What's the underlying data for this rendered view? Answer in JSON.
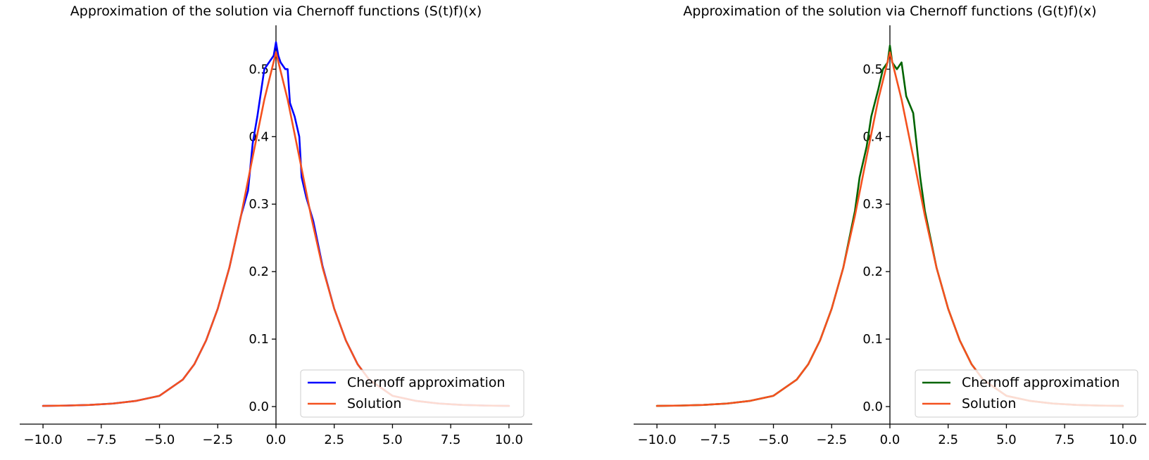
{
  "chart_data": [
    {
      "type": "line",
      "title": "Approximation of the solution via Chernoff functions (S(t)f)(x)",
      "xlim": [
        -11,
        11
      ],
      "ylim": [
        -0.026,
        0.565
      ],
      "x_ticks": [
        -10.0,
        -7.5,
        -5.0,
        -2.5,
        0.0,
        2.5,
        5.0,
        7.5,
        10.0
      ],
      "x_tick_labels": [
        "−10.0",
        "−7.5",
        "−5.0",
        "−2.5",
        "0.0",
        "2.5",
        "5.0",
        "7.5",
        "10.0"
      ],
      "y_ticks": [
        0.0,
        0.1,
        0.2,
        0.3,
        0.4,
        0.5
      ],
      "y_tick_labels": [
        "0.0",
        "0.1",
        "0.2",
        "0.3",
        "0.4",
        "0.5"
      ],
      "grid": false,
      "legend_position": "lower-right",
      "series": [
        {
          "name": "Chernoff approximation",
          "color": "#0000ff",
          "x": [
            -10,
            -9,
            -8,
            -7,
            -6,
            -5,
            -4,
            -3.5,
            -3,
            -2.5,
            -2,
            -1.5,
            -1.2,
            -1,
            -0.8,
            -0.5,
            -0.3,
            -0.1,
            0,
            0.1,
            0.2,
            0.4,
            0.5,
            0.6,
            0.8,
            1,
            1.1,
            1.3,
            1.6,
            2,
            2.5,
            3,
            3.5,
            4,
            5,
            6,
            7,
            8,
            9,
            10
          ],
          "y": [
            0.001,
            0.0015,
            0.0025,
            0.0045,
            0.0085,
            0.016,
            0.04,
            0.063,
            0.098,
            0.145,
            0.206,
            0.283,
            0.32,
            0.39,
            0.43,
            0.5,
            0.51,
            0.52,
            0.54,
            0.52,
            0.51,
            0.5,
            0.5,
            0.45,
            0.43,
            0.4,
            0.34,
            0.31,
            0.275,
            0.208,
            0.145,
            0.098,
            0.063,
            0.04,
            0.016,
            0.0085,
            0.0045,
            0.0025,
            0.0015,
            0.001
          ]
        },
        {
          "name": "Solution",
          "color": "#f4511e",
          "x": [
            -10,
            -9,
            -8,
            -7,
            -6,
            -5,
            -4,
            -3.5,
            -3,
            -2.5,
            -2,
            -1.5,
            -1,
            -0.5,
            0,
            0.5,
            1,
            1.5,
            2,
            2.5,
            3,
            3.5,
            4,
            5,
            6,
            7,
            8,
            9,
            10
          ],
          "y": [
            0.001,
            0.0015,
            0.0025,
            0.0045,
            0.0085,
            0.016,
            0.04,
            0.063,
            0.098,
            0.145,
            0.206,
            0.283,
            0.37,
            0.455,
            0.525,
            0.455,
            0.37,
            0.283,
            0.206,
            0.145,
            0.098,
            0.063,
            0.04,
            0.016,
            0.0085,
            0.0045,
            0.0025,
            0.0015,
            0.001
          ]
        }
      ]
    },
    {
      "type": "line",
      "title": "Approximation of the solution via Chernoff functions (G(t)f)(x)",
      "xlim": [
        -11,
        11
      ],
      "ylim": [
        -0.026,
        0.565
      ],
      "x_ticks": [
        -10.0,
        -7.5,
        -5.0,
        -2.5,
        0.0,
        2.5,
        5.0,
        7.5,
        10.0
      ],
      "x_tick_labels": [
        "−10.0",
        "−7.5",
        "−5.0",
        "−2.5",
        "0.0",
        "2.5",
        "5.0",
        "7.5",
        "10.0"
      ],
      "y_ticks": [
        0.0,
        0.1,
        0.2,
        0.3,
        0.4,
        0.5
      ],
      "y_tick_labels": [
        "0.0",
        "0.1",
        "0.2",
        "0.3",
        "0.4",
        "0.5"
      ],
      "grid": false,
      "legend_position": "lower-right",
      "series": [
        {
          "name": "Chernoff approximation",
          "color": "#006400",
          "x": [
            -10,
            -9,
            -8,
            -7,
            -6,
            -5,
            -4,
            -3.5,
            -3,
            -2.5,
            -2,
            -1.5,
            -1.3,
            -1,
            -0.8,
            -0.5,
            -0.3,
            -0.1,
            0,
            0.1,
            0.3,
            0.5,
            0.7,
            1,
            1.3,
            1.5,
            2,
            2.5,
            3,
            3.5,
            4,
            5,
            6,
            7,
            8,
            9,
            10
          ],
          "y": [
            0.001,
            0.0015,
            0.0025,
            0.0045,
            0.0085,
            0.016,
            0.04,
            0.063,
            0.098,
            0.145,
            0.206,
            0.29,
            0.34,
            0.385,
            0.43,
            0.47,
            0.5,
            0.51,
            0.535,
            0.51,
            0.5,
            0.51,
            0.46,
            0.435,
            0.34,
            0.29,
            0.206,
            0.145,
            0.098,
            0.063,
            0.04,
            0.016,
            0.0085,
            0.0045,
            0.0025,
            0.0015,
            0.001
          ]
        },
        {
          "name": "Solution",
          "color": "#f4511e",
          "x": [
            -10,
            -9,
            -8,
            -7,
            -6,
            -5,
            -4,
            -3.5,
            -3,
            -2.5,
            -2,
            -1.5,
            -1,
            -0.5,
            0,
            0.5,
            1,
            1.5,
            2,
            2.5,
            3,
            3.5,
            4,
            5,
            6,
            7,
            8,
            9,
            10
          ],
          "y": [
            0.001,
            0.0015,
            0.0025,
            0.0045,
            0.0085,
            0.016,
            0.04,
            0.063,
            0.098,
            0.145,
            0.206,
            0.283,
            0.37,
            0.455,
            0.525,
            0.455,
            0.37,
            0.283,
            0.206,
            0.145,
            0.098,
            0.063,
            0.04,
            0.016,
            0.0085,
            0.0045,
            0.0025,
            0.0015,
            0.001
          ]
        }
      ]
    }
  ]
}
